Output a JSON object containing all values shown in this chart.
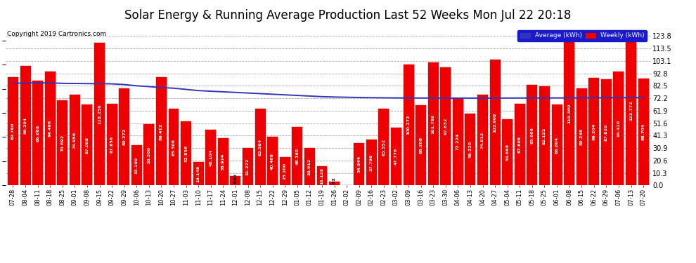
{
  "title": "Solar Energy & Running Average Production Last 52 Weeks Mon Jul 22 20:18",
  "copyright": "Copyright 2019 Cartronics.com",
  "categories": [
    "07-28",
    "08-04",
    "08-11",
    "08-18",
    "08-25",
    "09-01",
    "09-08",
    "09-15",
    "09-22",
    "09-29",
    "10-06",
    "10-13",
    "10-20",
    "10-27",
    "11-03",
    "11-10",
    "11-17",
    "11-24",
    "12-01",
    "12-08",
    "12-15",
    "12-22",
    "12-29",
    "01-05",
    "01-12",
    "01-19",
    "01-26",
    "02-02",
    "02-09",
    "02-16",
    "02-23",
    "03-02",
    "03-09",
    "03-16",
    "03-23",
    "03-30",
    "04-06",
    "04-13",
    "04-20",
    "04-27",
    "05-04",
    "05-11",
    "05-18",
    "05-25",
    "06-01",
    "06-08",
    "06-15",
    "06-22",
    "06-29",
    "07-06",
    "07-13",
    "07-20"
  ],
  "weekly_values": [
    89.76,
    99.204,
    86.668,
    94.496,
    70.692,
    74.956,
    67.008,
    118.256,
    67.856,
    80.272,
    33.1,
    50.56,
    89.412,
    63.308,
    52.956,
    19.148,
    46.104,
    38.924,
    7.84,
    31.272,
    63.584,
    40.408,
    23.2,
    48.16,
    30.912,
    16.128,
    3.012,
    0.0,
    34.944,
    37.796,
    63.552,
    47.776,
    100.272,
    66.208,
    101.78,
    97.632,
    72.224,
    59.22,
    74.912,
    103.908,
    54.668,
    67.608,
    83.0,
    82.152,
    66.804,
    119.3,
    80.248,
    89.204,
    87.62,
    94.42,
    123.772,
    88.704
  ],
  "avg_values": [
    84.5,
    84.8,
    84.85,
    84.9,
    84.5,
    84.4,
    84.3,
    84.2,
    84.1,
    83.5,
    82.5,
    81.8,
    81.0,
    80.5,
    79.5,
    78.5,
    78.0,
    77.5,
    77.0,
    76.5,
    76.0,
    75.5,
    75.0,
    74.5,
    74.0,
    73.5,
    73.2,
    73.0,
    72.8,
    72.65,
    72.55,
    72.45,
    72.4,
    72.38,
    72.35,
    72.33,
    72.3,
    72.3,
    72.3,
    72.32,
    72.35,
    72.38,
    72.4,
    72.42,
    72.45,
    72.5,
    72.55,
    72.6,
    72.65,
    72.7,
    72.75,
    72.8
  ],
  "bar_color": "#ee0000",
  "bar_edge_color": "#cc0000",
  "avg_line_color": "#3333bb",
  "background_color": "#ffffff",
  "grid_color": "#aaaaaa",
  "ylabel_right_values": [
    0.0,
    10.3,
    20.6,
    30.9,
    41.3,
    51.6,
    61.9,
    72.2,
    82.5,
    92.8,
    103.1,
    113.5,
    123.8
  ],
  "ylim": [
    0,
    130
  ],
  "legend_avg_label": "Average (kWh)",
  "legend_weekly_label": "Weekly (kWh)",
  "legend_avg_color": "#3333bb",
  "legend_weekly_color": "#ee0000",
  "title_fontsize": 12,
  "tick_fontsize": 6.0,
  "bar_label_fontsize": 4.5,
  "copyright_fontsize": 6.5
}
